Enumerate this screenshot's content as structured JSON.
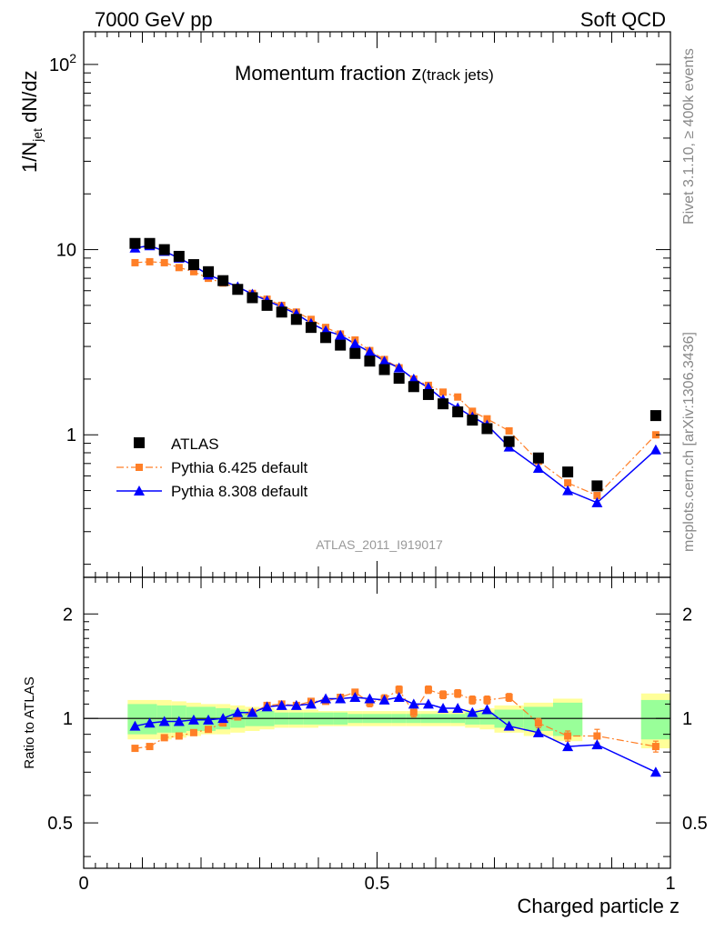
{
  "header": {
    "energy": "7000 GeV pp",
    "process": "Soft QCD"
  },
  "side_labels": {
    "rivet": "Rivet 3.1.10, ≥ 400k events",
    "mcplots": "mcplots.cern.ch [arXiv:1306.3436]"
  },
  "chart_data": [
    {
      "type": "scatter",
      "title": "Momentum fraction z(track jets)",
      "title_main": "Momentum fraction z",
      "title_sub": "(track jets)",
      "ylabel": "1/N_jet dN/dz",
      "ylabel_main": "1/N",
      "ylabel_sub": "jet",
      "ylabel_tail": " dN/dz",
      "xlim": [
        0,
        1
      ],
      "ylim": [
        0.17,
        150
      ],
      "yscale": "log",
      "y_tick_labels": [
        "1",
        "10",
        "10²"
      ],
      "watermark": "ATLAS_2011_I919017",
      "legend_position": "lower-left",
      "x": [
        0.0875,
        0.1125,
        0.1375,
        0.1625,
        0.1875,
        0.2125,
        0.2375,
        0.2625,
        0.2875,
        0.3125,
        0.3375,
        0.3625,
        0.3875,
        0.4125,
        0.4375,
        0.4625,
        0.4875,
        0.5125,
        0.5375,
        0.5625,
        0.5875,
        0.6125,
        0.6375,
        0.6625,
        0.6875,
        0.725,
        0.775,
        0.825,
        0.875,
        0.975
      ],
      "series": [
        {
          "name": "ATLAS",
          "color": "#000000",
          "marker": "square",
          "values": [
            10.8,
            10.8,
            10.0,
            9.2,
            8.3,
            7.6,
            6.8,
            6.1,
            5.5,
            5.0,
            4.6,
            4.2,
            3.8,
            3.35,
            3.05,
            2.75,
            2.5,
            2.25,
            2.02,
            1.82,
            1.65,
            1.47,
            1.33,
            1.2,
            1.08,
            0.92,
            0.75,
            0.63,
            0.53,
            1.27
          ]
        },
        {
          "name": "Pythia 6.425 default",
          "color": "#ff7f27",
          "marker": "square-small",
          "line": "dashdot",
          "values": [
            8.5,
            8.6,
            8.5,
            8.0,
            7.6,
            7.0,
            6.6,
            6.2,
            5.8,
            5.4,
            5.0,
            4.6,
            4.2,
            3.8,
            3.5,
            3.25,
            2.85,
            2.55,
            2.3,
            2.0,
            1.85,
            1.7,
            1.6,
            1.34,
            1.22,
            1.05,
            0.72,
            0.55,
            0.47,
            1.0
          ]
        },
        {
          "name": "Pythia 8.308 default",
          "color": "#0000ff",
          "marker": "triangle",
          "line": "solid",
          "values": [
            10.2,
            10.5,
            9.8,
            9.0,
            8.2,
            7.3,
            6.8,
            6.3,
            5.75,
            5.3,
            4.9,
            4.5,
            4.0,
            3.65,
            3.45,
            3.1,
            2.8,
            2.5,
            2.3,
            2.0,
            1.8,
            1.55,
            1.4,
            1.25,
            1.13,
            0.86,
            0.66,
            0.5,
            0.43,
            0.83
          ]
        }
      ]
    },
    {
      "type": "scatter",
      "ylabel": "Ratio to ATLAS",
      "xlabel": "Charged particle z",
      "xlim": [
        0,
        1
      ],
      "ylim": [
        0.37,
        2.55
      ],
      "yscale": "log",
      "x_tick_labels": [
        "0",
        "0.5",
        "1"
      ],
      "y_tick_labels": [
        "0.5",
        "1",
        "2"
      ],
      "reference_line": 1,
      "bands": {
        "x_low": [
          0.075,
          0.1,
          0.125,
          0.15,
          0.175,
          0.2,
          0.225,
          0.25,
          0.275,
          0.3,
          0.325,
          0.35,
          0.375,
          0.4,
          0.425,
          0.45,
          0.475,
          0.5,
          0.525,
          0.55,
          0.575,
          0.6,
          0.625,
          0.65,
          0.675,
          0.7,
          0.75,
          0.8,
          0.85,
          0.95
        ],
        "x_high": [
          0.1,
          0.125,
          0.15,
          0.175,
          0.2,
          0.225,
          0.25,
          0.275,
          0.3,
          0.325,
          0.35,
          0.375,
          0.4,
          0.425,
          0.45,
          0.475,
          0.5,
          0.525,
          0.55,
          0.575,
          0.6,
          0.625,
          0.65,
          0.675,
          0.7,
          0.75,
          0.8,
          0.85,
          0.9,
          1.0
        ],
        "stat_rel": [
          0.1,
          0.1,
          0.09,
          0.09,
          0.08,
          0.08,
          0.07,
          0.06,
          0.05,
          0.05,
          0.04,
          0.04,
          0.04,
          0.04,
          0.04,
          0.03,
          0.03,
          0.03,
          0.03,
          0.03,
          0.03,
          0.03,
          0.03,
          0.04,
          0.04,
          0.06,
          0.08,
          0.11,
          0.0,
          0.13
        ],
        "total_rel": [
          0.13,
          0.13,
          0.13,
          0.12,
          0.11,
          0.1,
          0.1,
          0.09,
          0.08,
          0.07,
          0.06,
          0.06,
          0.06,
          0.05,
          0.05,
          0.05,
          0.05,
          0.05,
          0.05,
          0.05,
          0.05,
          0.05,
          0.05,
          0.06,
          0.07,
          0.09,
          0.11,
          0.14,
          0.0,
          0.18
        ]
      },
      "x": [
        0.0875,
        0.1125,
        0.1375,
        0.1625,
        0.1875,
        0.2125,
        0.2375,
        0.2625,
        0.2875,
        0.3125,
        0.3375,
        0.3625,
        0.3875,
        0.4125,
        0.4375,
        0.4625,
        0.4875,
        0.5125,
        0.5375,
        0.5625,
        0.5875,
        0.6125,
        0.6375,
        0.6625,
        0.6875,
        0.725,
        0.775,
        0.825,
        0.875,
        0.975
      ],
      "series": [
        {
          "name": "Pythia 6.425 default",
          "color": "#ff7f27",
          "values": [
            0.82,
            0.83,
            0.88,
            0.89,
            0.91,
            0.93,
            0.97,
            1.01,
            1.04,
            1.09,
            1.1,
            1.09,
            1.12,
            1.12,
            1.15,
            1.19,
            1.11,
            1.14,
            1.21,
            1.04,
            1.21,
            1.17,
            1.18,
            1.13,
            1.13,
            1.15,
            0.97,
            0.89,
            0.89,
            0.83
          ],
          "errors": [
            0.01,
            0.01,
            0.01,
            0.01,
            0.01,
            0.01,
            0.01,
            0.01,
            0.01,
            0.01,
            0.02,
            0.02,
            0.02,
            0.02,
            0.02,
            0.02,
            0.03,
            0.03,
            0.03,
            0.03,
            0.03,
            0.03,
            0.03,
            0.03,
            0.03,
            0.03,
            0.03,
            0.03,
            0.04,
            0.03
          ]
        },
        {
          "name": "Pythia 8.308 default",
          "color": "#0000ff",
          "values": [
            0.95,
            0.97,
            0.98,
            0.98,
            0.99,
            0.99,
            1.0,
            1.04,
            1.04,
            1.08,
            1.09,
            1.09,
            1.1,
            1.14,
            1.14,
            1.15,
            1.14,
            1.13,
            1.15,
            1.1,
            1.1,
            1.07,
            1.07,
            1.04,
            1.06,
            0.95,
            0.91,
            0.83,
            0.84,
            0.7
          ],
          "errors": []
        }
      ]
    }
  ]
}
